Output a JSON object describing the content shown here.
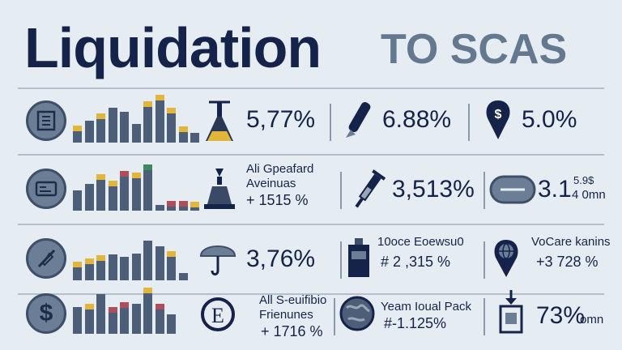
{
  "header": {
    "title": "Liquidation",
    "subtitle": "TO SCAS"
  },
  "colors": {
    "navy": "#15224a",
    "slate": "#4d5f78",
    "gold": "#e2b63a",
    "red": "#b04d5a",
    "green": "#3f8a5a",
    "grey": "#8a96a6"
  },
  "rows": [
    {
      "badge_icon": "document-grid-icon",
      "bar_levels": [
        0.35,
        0.45,
        0.6,
        0.72,
        0.63,
        0.38,
        0.85,
        0.98,
        0.72,
        0.33,
        0.2
      ],
      "bar_caps": [
        "gold",
        "slate",
        "gold",
        "slate",
        "slate",
        "slate",
        "gold",
        "gold",
        "gold",
        "gold",
        "slate"
      ],
      "col1": {
        "icon": "flask-icon",
        "value": "5,77%"
      },
      "col2": {
        "icon": "pen-icon",
        "value": "6.88%"
      },
      "col3": {
        "icon": "dollar-pin-icon",
        "value": "5.0%"
      }
    },
    {
      "badge_icon": "id-card-icon",
      "bar_levels": [
        0.42,
        0.55,
        0.75,
        0.62,
        0.82,
        0.78,
        0.95,
        0.12,
        0.2,
        0.2,
        0.18
      ],
      "bar_caps": [
        "slate",
        "slate",
        "gold",
        "gold",
        "red",
        "gold",
        "green",
        "slate",
        "red",
        "red",
        "gold"
      ],
      "col1": {
        "icon": "lamp-icon",
        "line1": "Ali Gpeafard",
        "line2": "Aveinuas",
        "value": "+ 1515 %"
      },
      "col2": {
        "icon": "syringe-icon",
        "value": "3,513%"
      },
      "col3": {
        "icon": "pill-icon",
        "value": "3.1",
        "stack_top": "5.9$",
        "stack_bottom": "4 0mn"
      }
    },
    {
      "badge_icon": "strikethrough-pen-icon",
      "bar_levels": [
        0.38,
        0.45,
        0.52,
        0.54,
        0.48,
        0.55,
        0.82,
        0.7,
        0.6,
        0.15
      ],
      "bar_caps": [
        "gold",
        "gold",
        "gold",
        "slate",
        "slate",
        "slate",
        "slate",
        "slate",
        "gold",
        "slate"
      ],
      "col1": {
        "icon": "bulb-icon",
        "value": "3,76%"
      },
      "col2": {
        "icon": "battery-icon",
        "line1": "10oce Eoewsu0",
        "value": "# 2 ,315 %"
      },
      "col3": {
        "icon": "globe-pin-icon",
        "line1": "VoCare kanins",
        "value": "+3 728 %"
      }
    },
    {
      "badge_icon": "dollar-icon",
      "bar_levels": [
        0.55,
        0.62,
        0.82,
        0.55,
        0.65,
        0.62,
        0.95,
        0.62,
        0.4
      ],
      "bar_caps": [
        "slate",
        "gold",
        "slate",
        "red",
        "red",
        "slate",
        "gold",
        "red",
        "slate"
      ],
      "col1": {
        "icon": "letter-e-icon",
        "icon_text": "E",
        "line1": "All S-euifibio",
        "line2": "Frienunes",
        "value": "+ 1716 %"
      },
      "col2": {
        "icon": "globe-icon",
        "line1": "Yeam Ioual Pack",
        "value": "#-1.125%"
      },
      "col3": {
        "icon": "box-arrow-icon",
        "value": "73%",
        "suffix": "omn"
      }
    }
  ],
  "badge_glyphs": {
    "dollar-icon": "$"
  }
}
